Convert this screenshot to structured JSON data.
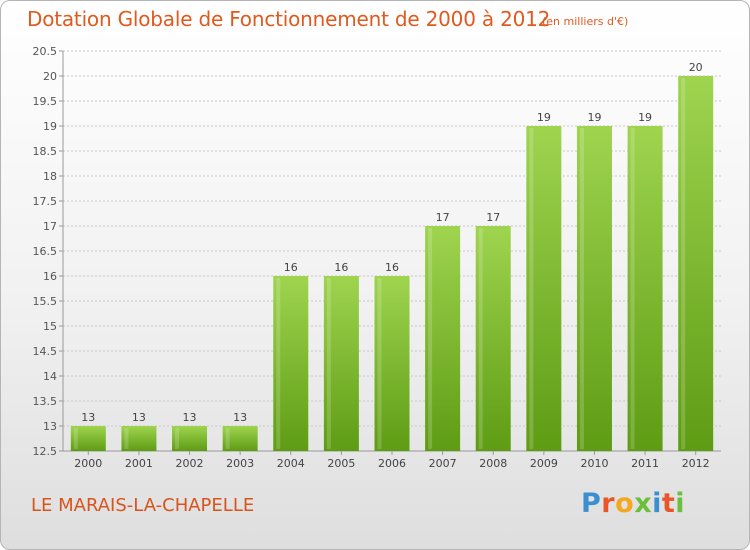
{
  "title": "Dotation Globale de Fonctionnement de 2000 à 2012",
  "subtitle": "(en milliers d'€)",
  "commune": "LE MARAIS-LA-CHAPELLE",
  "logo": "Proxiti",
  "colors": {
    "bar_top": "#9fd44f",
    "bar_bottom": "#5e9c14",
    "title": "#e05a1e"
  },
  "chart_data": {
    "type": "bar",
    "categories": [
      "2000",
      "2001",
      "2002",
      "2003",
      "2004",
      "2005",
      "2006",
      "2007",
      "2008",
      "2009",
      "2010",
      "2011",
      "2012"
    ],
    "values": [
      13,
      13,
      13,
      13,
      16,
      16,
      16,
      17,
      17,
      19,
      19,
      19,
      20
    ],
    "value_labels": [
      "13",
      "13",
      "13",
      "13",
      "16",
      "16",
      "16",
      "17",
      "17",
      "19",
      "19",
      "19",
      "20"
    ],
    "ylim": [
      12.5,
      20.5
    ],
    "yticks": [
      12.5,
      13,
      13.5,
      14,
      14.5,
      15,
      15.5,
      16,
      16.5,
      17,
      17.5,
      18,
      18.5,
      19,
      19.5,
      20,
      20.5
    ],
    "ytick_labels": [
      "12.5",
      "13",
      "13.5",
      "14",
      "14.5",
      "15",
      "15.5",
      "16",
      "16.5",
      "17",
      "17.5",
      "18",
      "18.5",
      "19",
      "19.5",
      "20",
      "20.5"
    ],
    "grid": true,
    "legend": "none",
    "xlabel": "",
    "ylabel": ""
  }
}
